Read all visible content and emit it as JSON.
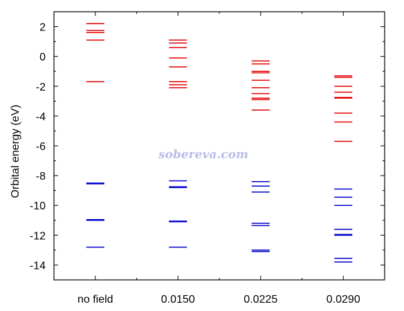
{
  "chart_data": {
    "type": "energy-level",
    "categories": [
      "no field",
      "0.0150",
      "0.0225",
      "0.0290"
    ],
    "ylabel": "Orbital energy (eV)",
    "ylim": [
      -15,
      3
    ],
    "yticks": [
      2,
      0,
      -2,
      -4,
      -6,
      -8,
      -10,
      -12,
      -14
    ],
    "grid": false,
    "watermark": "sobereva.com",
    "colors": {
      "virtual": "#e00000",
      "occupied": "#0000cc",
      "axis": "#000000"
    },
    "series": [
      {
        "color": "virtual",
        "levels": [
          [
            2.2,
            1.75,
            1.6,
            1.1,
            -1.7
          ],
          [
            1.1,
            0.9,
            0.6,
            -0.1,
            -0.7,
            -1.7,
            -1.9,
            -2.1
          ],
          [
            -0.3,
            -0.5,
            -1.0,
            -1.1,
            -1.6,
            -2.1,
            -2.5,
            -2.8,
            -2.9,
            -3.6
          ],
          [
            -1.3,
            -1.4,
            -2.0,
            -2.4,
            -2.75,
            -2.8,
            -3.8,
            -4.4,
            -5.7
          ]
        ]
      },
      {
        "color": "occupied",
        "levels": [
          [
            -8.5,
            -8.55,
            -10.95,
            -11.0,
            -12.8
          ],
          [
            -8.35,
            -8.75,
            -8.8,
            -11.05,
            -11.1,
            -12.8
          ],
          [
            -8.4,
            -8.7,
            -9.1,
            -11.2,
            -11.35,
            -13.0,
            -13.1
          ],
          [
            -8.9,
            -9.45,
            -10.0,
            -11.6,
            -11.95,
            -12.0,
            -13.55,
            -13.8
          ]
        ]
      }
    ]
  }
}
